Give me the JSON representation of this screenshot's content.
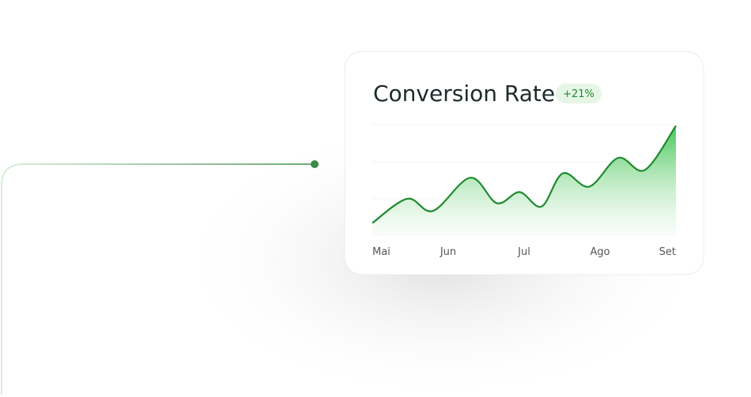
{
  "chart_data": {
    "type": "area",
    "title": "Conversion Rate",
    "badge": "+21%",
    "x": [
      0,
      0.46,
      0.8,
      1.29,
      1.64,
      1.94,
      2.23,
      2.51,
      2.86,
      3.24,
      3.59,
      4
    ],
    "values": [
      11,
      33,
      22,
      52,
      29,
      39,
      26,
      56,
      44,
      70,
      59,
      99
    ],
    "color": "#1f8a2e",
    "xlim": [
      0,
      4
    ],
    "xticks": [
      {
        "value": 0,
        "label": "Mai"
      },
      {
        "value": 1,
        "label": "Jun"
      },
      {
        "value": 2,
        "label": "Jul"
      },
      {
        "value": 3,
        "label": "Ago"
      },
      {
        "value": 4,
        "label": "Set"
      }
    ],
    "ylim": [
      0,
      100
    ]
  }
}
